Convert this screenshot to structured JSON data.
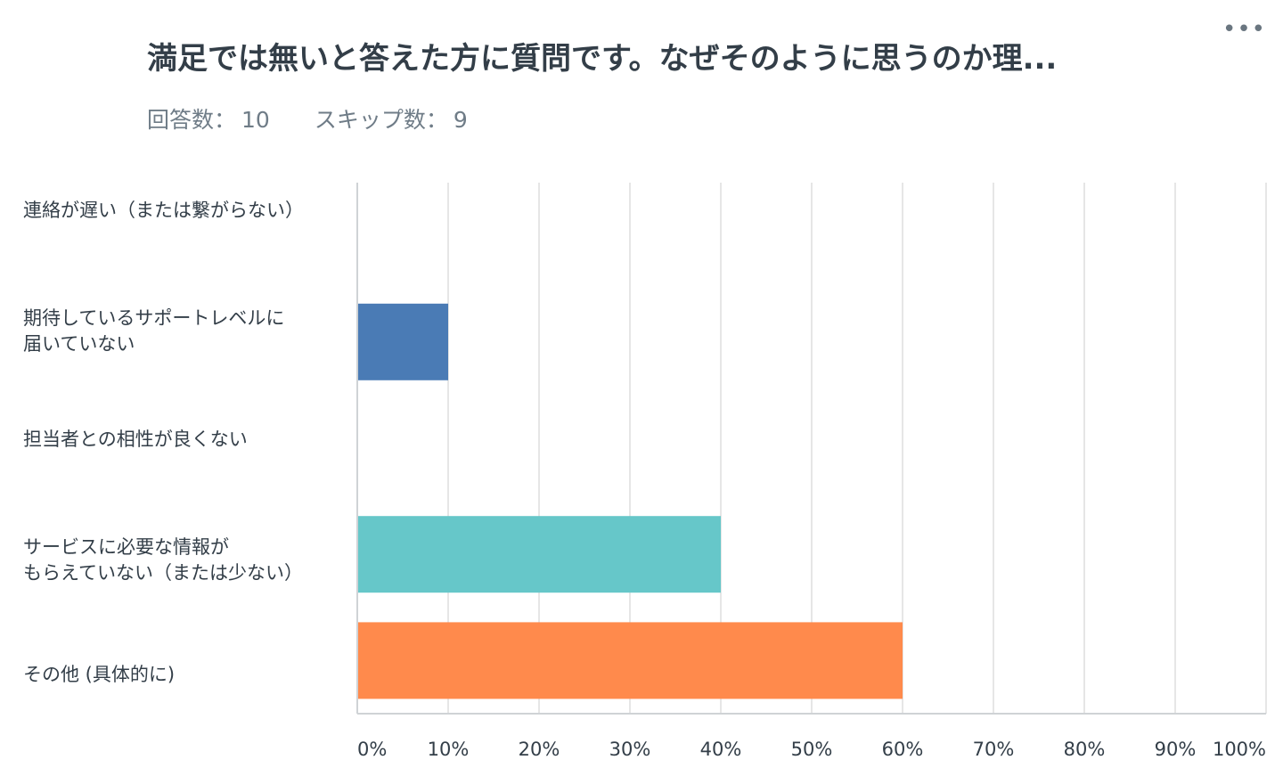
{
  "header": {
    "title": "満足では無いと答えた方に質問です。なぜそのように思うのか理...",
    "more_icon": "more-horizontal-icon",
    "responses_label": "回答数：",
    "responses_value": "10",
    "skips_label": "スキップ数：",
    "skips_value": "9"
  },
  "chart_data": {
    "type": "bar",
    "orientation": "horizontal",
    "title": "満足では無いと答えた方に質問です。なぜそのように思うのか理...",
    "categories": [
      "連絡が遅い（または繋がらない）",
      "期待しているサポートレベルに\n届いていない",
      "担当者との相性が良くない",
      "サービスに必要な情報が\nもらえていない（または少ない）",
      " その他 (具体的に)"
    ],
    "values": [
      0,
      10,
      0,
      40,
      60
    ],
    "colors": [
      "#4a7bb5",
      "#4a7bb5",
      "#66c7c9",
      "#66c7c9",
      "#ff8a4c"
    ],
    "xlabel": "",
    "ylabel": "",
    "xlim": [
      0,
      100
    ],
    "xticks": [
      "0%",
      "10%",
      "20%",
      "30%",
      "40%",
      "50%",
      "60%",
      "70%",
      "80%",
      "90%",
      "100%"
    ],
    "grid": true,
    "legend": "none"
  }
}
